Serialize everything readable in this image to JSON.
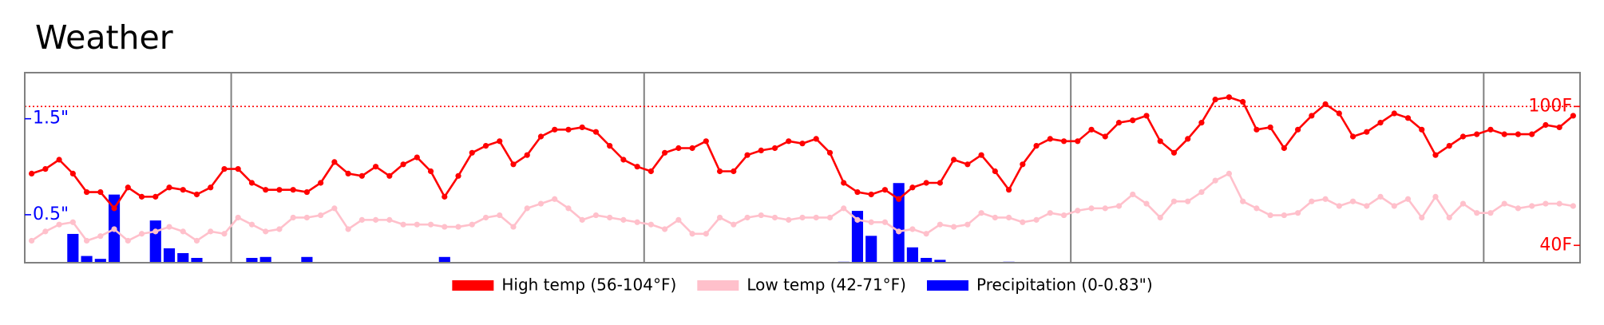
{
  "chart_data": {
    "type": "line",
    "title": "Weather",
    "x": [
      0,
      1,
      2,
      3,
      4,
      5,
      6,
      7,
      8,
      9,
      10,
      11,
      12,
      13,
      14,
      15,
      16,
      17,
      18,
      19,
      20,
      21,
      22,
      23,
      24,
      25,
      26,
      27,
      28,
      29,
      30,
      31,
      32,
      33,
      34,
      35,
      36,
      37,
      38,
      39,
      40,
      41,
      42,
      43,
      44,
      45,
      46,
      47,
      48,
      49,
      50,
      51,
      52,
      53,
      54,
      55,
      56,
      57,
      58,
      59,
      60,
      61,
      62,
      63,
      64,
      65,
      66,
      67,
      68,
      69,
      70,
      71,
      72,
      73,
      74,
      75,
      76,
      77,
      78,
      79,
      80,
      81,
      82,
      83,
      84,
      85,
      86,
      87,
      88,
      89,
      90,
      91,
      92,
      93,
      94,
      95,
      96,
      97,
      98,
      99,
      100,
      101,
      102,
      103,
      104,
      105,
      106,
      107,
      108,
      109,
      110,
      111,
      112
    ],
    "xlim": [
      -0.5,
      112.5
    ],
    "vlines": [
      14.5,
      44.5,
      75.5,
      105.5
    ],
    "hline": 100,
    "ylim": [
      32.5,
      114.6
    ],
    "yticks": [
      {
        "value": 100,
        "label": "100F"
      },
      {
        "value": 40,
        "label": "40F"
      }
    ],
    "y2lim": [
      0,
      1.98
    ],
    "y2ticks": [
      {
        "value": 1.5,
        "label": "1.5\""
      },
      {
        "value": 0.5,
        "label": "0.5\""
      }
    ],
    "series": [
      {
        "name": "High temp (56-104°F)",
        "color": "#ff0000",
        "type": "line",
        "values": [
          71,
          73,
          77,
          71,
          63,
          63,
          56,
          65,
          61,
          61,
          65,
          64,
          62,
          65,
          73,
          73,
          67,
          64,
          64,
          64,
          63,
          67,
          76,
          71,
          70,
          74,
          70,
          75,
          78,
          72,
          61,
          70,
          80,
          83,
          85,
          75,
          79,
          87,
          90,
          90,
          91,
          89,
          83,
          77,
          74,
          72,
          80,
          82,
          82,
          85,
          72,
          72,
          79,
          81,
          82,
          85,
          84,
          86,
          80,
          67,
          63,
          62,
          64,
          60,
          65,
          67,
          67,
          77,
          75,
          79,
          72,
          64,
          75,
          83,
          86,
          85,
          85,
          90,
          87,
          93,
          94,
          96,
          85,
          80,
          86,
          93,
          103,
          104,
          102,
          90,
          91,
          82,
          90,
          96,
          101,
          97,
          87,
          89,
          93,
          97,
          95,
          90,
          79,
          83,
          87,
          88,
          90,
          88,
          88,
          88,
          92,
          91,
          96
        ]
      },
      {
        "name": "Low temp (42-71°F)",
        "color": "#ffc0cb",
        "type": "line",
        "values": [
          42,
          46,
          49,
          50,
          42,
          44,
          47,
          42,
          45,
          46,
          48,
          46,
          42,
          46,
          45,
          52,
          49,
          46,
          47,
          52,
          52,
          53,
          56,
          47,
          51,
          51,
          51,
          49,
          49,
          49,
          48,
          48,
          49,
          52,
          53,
          48,
          56,
          58,
          60,
          56,
          51,
          53,
          52,
          51,
          50,
          49,
          47,
          51,
          45,
          45,
          52,
          49,
          52,
          53,
          52,
          51,
          52,
          52,
          52,
          56,
          51,
          50,
          50,
          46,
          47,
          45,
          49,
          48,
          49,
          54,
          52,
          52,
          50,
          51,
          54,
          53,
          55,
          56,
          56,
          57,
          62,
          58,
          52,
          59,
          59,
          63,
          68,
          71,
          59,
          56,
          53,
          53,
          54,
          59,
          60,
          57,
          59,
          57,
          61,
          57,
          60,
          52,
          61,
          52,
          58,
          54,
          54,
          58,
          56,
          57,
          58,
          58,
          57
        ]
      },
      {
        "name": "Precipitation (0-0.83\")",
        "color": "#0000ff",
        "type": "bar",
        "axis": "y2",
        "values": [
          0,
          0,
          0,
          0.3,
          0.07,
          0.04,
          0.71,
          0,
          0,
          0.44,
          0.15,
          0.1,
          0.05,
          0,
          0,
          0,
          0.05,
          0.06,
          0,
          0,
          0.06,
          0,
          0,
          0,
          0,
          0,
          0,
          0,
          0,
          0,
          0.06,
          0,
          0,
          0,
          0,
          0,
          0,
          0,
          0,
          0,
          0,
          0,
          0,
          0,
          0,
          0,
          0,
          0,
          0,
          0,
          0,
          0,
          0,
          0,
          0,
          0,
          0,
          0,
          0,
          0.01,
          0.54,
          0.28,
          0,
          0.83,
          0.16,
          0.05,
          0.03,
          0,
          0,
          0,
          0,
          0.01,
          0,
          0,
          0,
          0,
          0,
          0,
          0,
          0,
          0,
          0,
          0,
          0,
          0,
          0,
          0,
          0,
          0,
          0,
          0,
          0,
          0,
          0,
          0,
          0,
          0,
          0,
          0,
          0,
          0,
          0,
          0,
          0,
          0,
          0,
          0,
          0,
          0,
          0,
          0,
          0,
          0
        ]
      }
    ]
  }
}
